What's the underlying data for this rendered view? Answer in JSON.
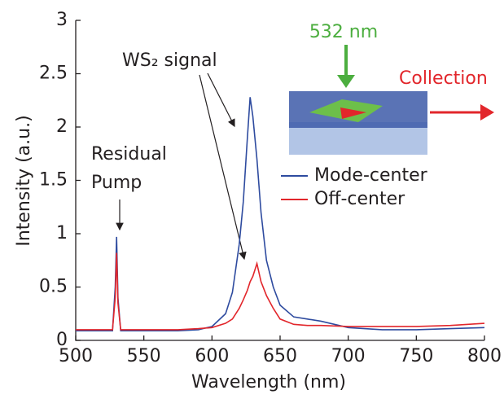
{
  "chart_data": {
    "type": "line",
    "xlabel": "Wavelength (nm)",
    "ylabel": "Intensity (a.u.)",
    "x": [
      500,
      515,
      527,
      529,
      530,
      531,
      533,
      550,
      575,
      590,
      600,
      610,
      615,
      620,
      623,
      626,
      628,
      630,
      633,
      636,
      640,
      645,
      650,
      660,
      670,
      680,
      700,
      725,
      750,
      775,
      800
    ],
    "series": [
      {
        "name": "Mode-center",
        "color": "#2e4b9f",
        "values": [
          0.09,
          0.09,
          0.09,
          0.5,
          0.97,
          0.4,
          0.09,
          0.09,
          0.09,
          0.1,
          0.13,
          0.25,
          0.45,
          0.9,
          1.3,
          1.9,
          2.28,
          2.1,
          1.7,
          1.2,
          0.75,
          0.5,
          0.33,
          0.22,
          0.2,
          0.18,
          0.12,
          0.1,
          0.1,
          0.11,
          0.12
        ]
      },
      {
        "name": "Off-center",
        "color": "#e2262b",
        "values": [
          0.1,
          0.1,
          0.1,
          0.4,
          0.82,
          0.35,
          0.1,
          0.1,
          0.1,
          0.11,
          0.12,
          0.16,
          0.2,
          0.3,
          0.38,
          0.47,
          0.55,
          0.6,
          0.72,
          0.55,
          0.42,
          0.3,
          0.2,
          0.15,
          0.14,
          0.14,
          0.13,
          0.13,
          0.13,
          0.14,
          0.16
        ]
      }
    ],
    "xlim": [
      500,
      800
    ],
    "xticks": [
      500,
      550,
      600,
      650,
      700,
      750,
      800
    ],
    "ylim": [
      0,
      3
    ],
    "yticks": [
      0,
      0.5,
      1,
      1.5,
      2,
      2.5,
      3
    ],
    "annotations": [
      "WS₂ signal",
      "Residual",
      "Pump",
      "532 nm",
      "Collection"
    ]
  }
}
